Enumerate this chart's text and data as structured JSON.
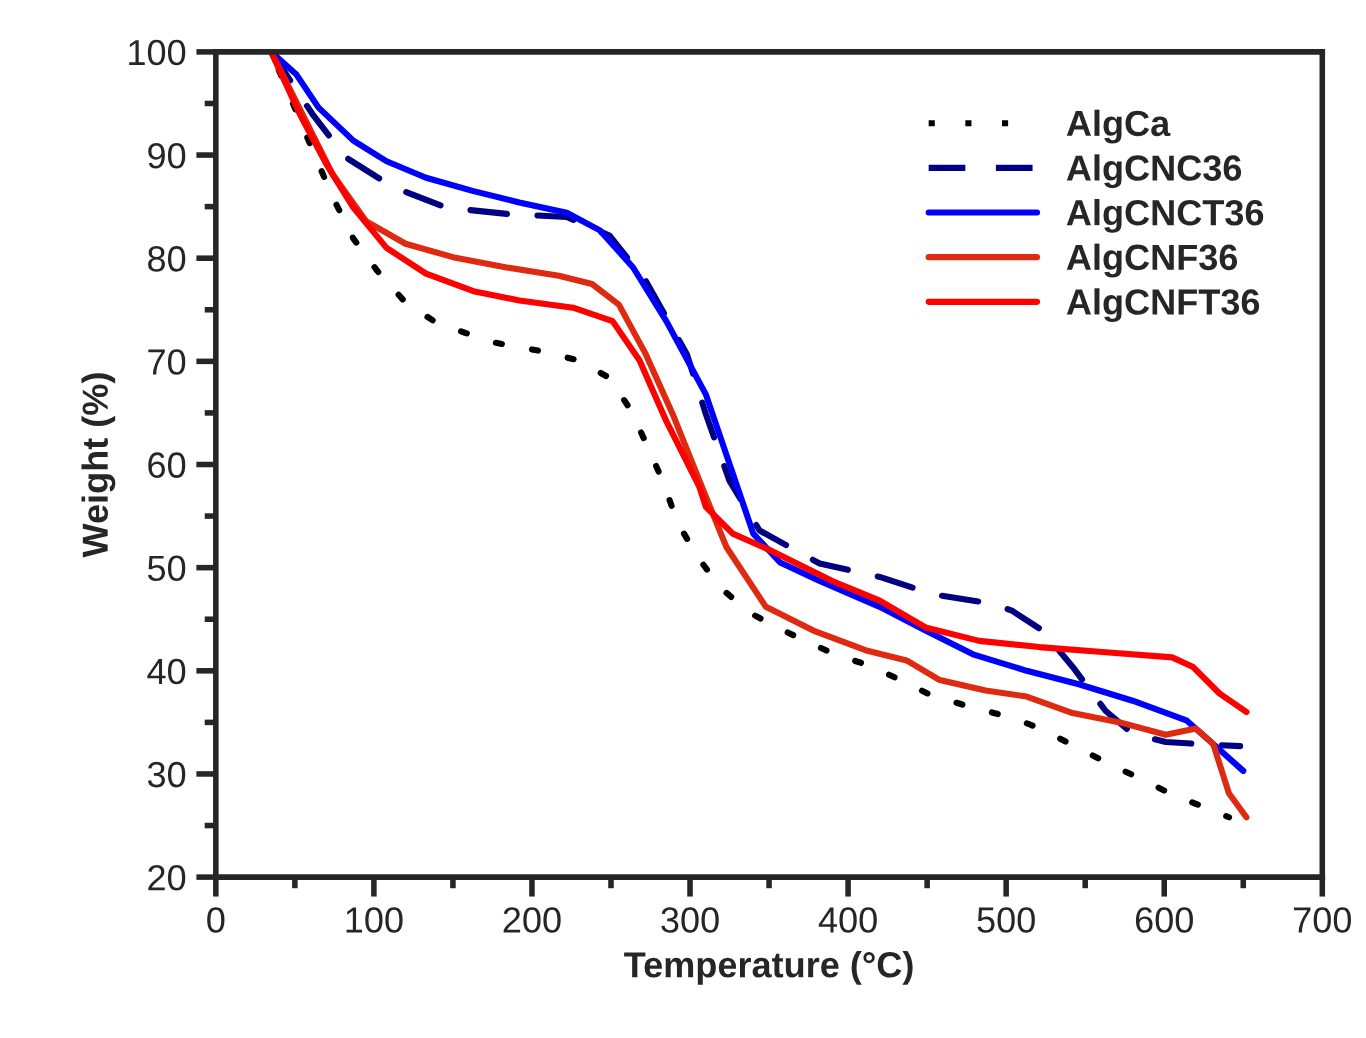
{
  "chart_data": {
    "type": "line",
    "xlabel": "Temperature (°C)",
    "ylabel": "Weight (%)",
    "xlim": [
      0,
      700
    ],
    "ylim": [
      20,
      100
    ],
    "xticks": [
      0,
      {
        "value": 50,
        "label": null
      },
      100,
      {
        "value": 150,
        "label": null
      },
      200,
      {
        "value": 250,
        "label": null
      },
      300,
      {
        "value": 350,
        "label": null
      },
      400,
      {
        "value": 450,
        "label": null
      },
      500,
      {
        "value": 550,
        "label": null
      },
      600,
      {
        "value": 650,
        "label": null
      },
      700
    ],
    "yticks": [
      20,
      {
        "value": 25,
        "label": null
      },
      30,
      {
        "value": 35,
        "label": null
      },
      40,
      {
        "value": 45,
        "label": null
      },
      50,
      {
        "value": 55,
        "label": null
      },
      60,
      {
        "value": 65,
        "label": null
      },
      70,
      {
        "value": 75,
        "label": null
      },
      80,
      {
        "value": 85,
        "label": null
      },
      90,
      {
        "value": 95,
        "label": null
      },
      100
    ],
    "grid": false,
    "legend": "top right",
    "marker": "none",
    "series": [
      {
        "name": "AlgCa",
        "color": "#000000",
        "line_style": "dotted",
        "x": [
          35,
          65,
          75,
          87,
          102,
          120,
          138,
          157,
          177,
          209,
          229,
          249,
          262,
          273,
          283,
          292,
          305,
          319,
          337,
          355,
          373,
          393,
          414,
          433,
          453,
          473,
          495,
          515,
          527,
          543,
          561,
          580,
          600,
          620,
          641
        ],
        "values": [
          100,
          89.1,
          85.6,
          81.9,
          78.8,
          75.7,
          73.9,
          72.8,
          71.8,
          70.9,
          70.1,
          68.4,
          65.4,
          61.8,
          58.3,
          54.4,
          51,
          48.1,
          45.7,
          44.2,
          42.9,
          41.5,
          40.5,
          39.1,
          37.6,
          36.7,
          35.8,
          34.8,
          34,
          32.7,
          31.3,
          29.9,
          28.4,
          27.1,
          25.8
        ]
      },
      {
        "name": "AlgCNC36",
        "color": "#000080",
        "line_style": "dashed",
        "x": [
          35,
          61,
          82,
          112,
          146,
          184,
          222,
          249,
          272,
          298,
          310,
          325,
          344,
          382,
          420,
          454,
          492,
          504,
          523,
          542,
          563,
          580,
          601,
          622,
          648
        ],
        "values": [
          100,
          94,
          89.8,
          86.9,
          84.9,
          84.3,
          84,
          82.2,
          77.8,
          70.7,
          64.9,
          58.4,
          53.6,
          50.4,
          49.1,
          47.4,
          46.5,
          45.8,
          43.9,
          40.4,
          36.1,
          33.9,
          33.1,
          32.9,
          32.7
        ]
      },
      {
        "name": "AlgCNCT36",
        "color": "#0000ff",
        "line_style": "solid",
        "x": [
          35,
          51,
          65,
          87,
          108,
          133,
          163,
          192,
          222,
          243,
          264,
          285,
          310,
          340,
          357,
          382,
          420,
          449,
          479,
          513,
          546,
          580,
          614,
          631,
          650
        ],
        "values": [
          100,
          97.8,
          94.6,
          91.4,
          89.4,
          87.8,
          86.5,
          85.4,
          84.4,
          82.7,
          79.1,
          73.9,
          66.8,
          53.3,
          50.5,
          48.7,
          46.2,
          43.9,
          41.6,
          40,
          38.7,
          37.1,
          35.2,
          32.9,
          30.3
        ]
      },
      {
        "name": "AlgCNF36",
        "color": "#dd2a10",
        "line_style": "solid",
        "x": [
          35,
          40,
          57,
          74,
          95,
          120,
          150,
          184,
          217,
          238,
          255,
          272,
          289,
          306,
          323,
          348,
          378,
          411,
          437,
          458,
          487,
          513,
          542,
          572,
          601,
          620,
          631,
          641,
          652
        ],
        "values": [
          100,
          98.5,
          93.3,
          88.1,
          83.6,
          81.4,
          80.1,
          79.1,
          78.3,
          77.5,
          75.5,
          70.7,
          64.9,
          58.4,
          52,
          46.2,
          43.9,
          42,
          41,
          39.1,
          38.1,
          37.5,
          35.9,
          35,
          33.8,
          34.4,
          32.9,
          28.1,
          25.8
        ]
      },
      {
        "name": "AlgCNFT36",
        "color": "#ff0000",
        "line_style": "solid",
        "x": [
          35,
          53,
          70,
          87,
          108,
          133,
          163,
          192,
          226,
          251,
          268,
          285,
          306,
          310,
          327,
          352,
          390,
          420,
          449,
          483,
          521,
          563,
          605,
          618,
          635,
          652
        ],
        "values": [
          100,
          94,
          89.1,
          84.9,
          81,
          78.5,
          76.8,
          75.9,
          75.2,
          73.9,
          70.1,
          64.2,
          57.8,
          55.9,
          53.3,
          51.6,
          48.7,
          46.8,
          44.2,
          42.9,
          42.3,
          41.8,
          41.3,
          40.4,
          37.8,
          36
        ]
      }
    ]
  }
}
